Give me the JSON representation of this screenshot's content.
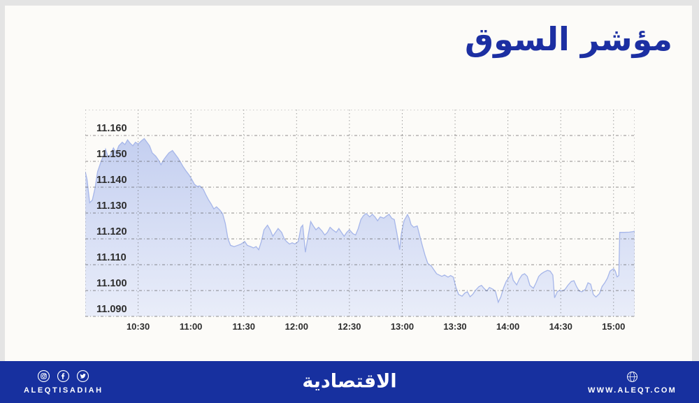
{
  "frame": {
    "color": "#e4e4e4"
  },
  "canvas": {
    "color": "#fcfbf8"
  },
  "title": {
    "text": "مؤشر السوق",
    "color": "#1c2fa2"
  },
  "chart_data": {
    "type": "area",
    "title": "مؤشر السوق",
    "xlabel": "",
    "ylabel": "",
    "x_axis": {
      "unit": "time-of-day",
      "visible_start": "10:00",
      "visible_end": "15:12"
    },
    "xlim_minutes_after_1000": [
      0,
      312
    ],
    "ylim": [
      11.09,
      11.17
    ],
    "grid": true,
    "legend": false,
    "xticks": [
      {
        "t": 30,
        "label": "10:30"
      },
      {
        "t": 60,
        "label": "11:00"
      },
      {
        "t": 90,
        "label": "11:30"
      },
      {
        "t": 120,
        "label": "12:00"
      },
      {
        "t": 150,
        "label": "12:30"
      },
      {
        "t": 180,
        "label": "13:00"
      },
      {
        "t": 210,
        "label": "13:30"
      },
      {
        "t": 240,
        "label": "14:00"
      },
      {
        "t": 270,
        "label": "14:30"
      },
      {
        "t": 300,
        "label": "15:00"
      }
    ],
    "yticks": [
      {
        "v": 11.09,
        "label": "11.090"
      },
      {
        "v": 11.1,
        "label": "11.100"
      },
      {
        "v": 11.11,
        "label": "11.110"
      },
      {
        "v": 11.12,
        "label": "11.120"
      },
      {
        "v": 11.13,
        "label": "11.130"
      },
      {
        "v": 11.14,
        "label": "11.140"
      },
      {
        "v": 11.15,
        "label": "11.150"
      },
      {
        "v": 11.16,
        "label": "11.160"
      }
    ],
    "series": [
      {
        "name": "market-index-intraday",
        "points": [
          [
            0,
            11.146
          ],
          [
            1,
            11.143
          ],
          [
            2.5,
            11.134
          ],
          [
            4,
            11.135
          ],
          [
            5.5,
            11.1395
          ],
          [
            7,
            11.146
          ],
          [
            9,
            11.15
          ],
          [
            10.5,
            11.1525
          ],
          [
            11.5,
            11.1547
          ],
          [
            13,
            11.1515
          ],
          [
            14.5,
            11.1528
          ],
          [
            16,
            11.1552
          ],
          [
            17.5,
            11.1533
          ],
          [
            19,
            11.156
          ],
          [
            21,
            11.1574
          ],
          [
            22.5,
            11.1565
          ],
          [
            24,
            11.1583
          ],
          [
            25.5,
            11.157
          ],
          [
            27,
            11.156
          ],
          [
            28.5,
            11.1574
          ],
          [
            30,
            11.1567
          ],
          [
            32,
            11.158
          ],
          [
            33.5,
            11.1588
          ],
          [
            35,
            11.1574
          ],
          [
            36.5,
            11.156
          ],
          [
            38,
            11.1533
          ],
          [
            40,
            11.152
          ],
          [
            41.5,
            11.1506
          ],
          [
            43,
            11.1487
          ],
          [
            44.5,
            11.1506
          ],
          [
            46,
            11.152
          ],
          [
            47.5,
            11.1533
          ],
          [
            49.5,
            11.1542
          ],
          [
            51,
            11.1528
          ],
          [
            52.5,
            11.1514
          ],
          [
            54,
            11.1498
          ],
          [
            55.5,
            11.148
          ],
          [
            57,
            11.1465
          ],
          [
            59,
            11.1447
          ],
          [
            60.5,
            11.143
          ],
          [
            62,
            11.1411
          ],
          [
            63.5,
            11.1403
          ],
          [
            65,
            11.1405
          ],
          [
            67,
            11.1392
          ],
          [
            68.5,
            11.137
          ],
          [
            70,
            11.1351
          ],
          [
            71.5,
            11.1335
          ],
          [
            73,
            11.1316
          ],
          [
            74.5,
            11.1324
          ],
          [
            76.5,
            11.1311
          ],
          [
            78,
            11.1297
          ],
          [
            79.5,
            11.126
          ],
          [
            81,
            11.12
          ],
          [
            82.5,
            11.1175
          ],
          [
            84.5,
            11.117
          ],
          [
            86.5,
            11.1175
          ],
          [
            88.5,
            11.118
          ],
          [
            90.5,
            11.119
          ],
          [
            92,
            11.1175
          ],
          [
            94,
            11.117
          ],
          [
            95.5,
            11.1165
          ],
          [
            97,
            11.117
          ],
          [
            98.5,
            11.1158
          ],
          [
            100,
            11.119
          ],
          [
            101.5,
            11.1235
          ],
          [
            103.5,
            11.1253
          ],
          [
            105,
            11.1235
          ],
          [
            106.5,
            11.121
          ],
          [
            108,
            11.1225
          ],
          [
            109.5,
            11.124
          ],
          [
            111.5,
            11.1225
          ],
          [
            113,
            11.12
          ],
          [
            114.5,
            11.1188
          ],
          [
            116,
            11.118
          ],
          [
            117.5,
            11.1185
          ],
          [
            119,
            11.118
          ],
          [
            121,
            11.119
          ],
          [
            122.5,
            11.1245
          ],
          [
            123.5,
            11.1253
          ],
          [
            125,
            11.1148
          ],
          [
            126.5,
            11.121
          ],
          [
            128,
            11.1267
          ],
          [
            129.5,
            11.125
          ],
          [
            131,
            11.1235
          ],
          [
            132.5,
            11.1245
          ],
          [
            134.5,
            11.123
          ],
          [
            136,
            11.1215
          ],
          [
            137.5,
            11.1225
          ],
          [
            139,
            11.1245
          ],
          [
            140.5,
            11.1235
          ],
          [
            142.5,
            11.1225
          ],
          [
            144,
            11.124
          ],
          [
            145.5,
            11.1225
          ],
          [
            147,
            11.121
          ],
          [
            148.5,
            11.1225
          ],
          [
            150,
            11.1235
          ],
          [
            152,
            11.122
          ],
          [
            153.5,
            11.1215
          ],
          [
            155,
            11.124
          ],
          [
            156.5,
            11.1275
          ],
          [
            158,
            11.129
          ],
          [
            159.5,
            11.1298
          ],
          [
            161.5,
            11.1285
          ],
          [
            163,
            11.1295
          ],
          [
            164.5,
            11.1285
          ],
          [
            166,
            11.127
          ],
          [
            167.5,
            11.1285
          ],
          [
            169.5,
            11.128
          ],
          [
            171,
            11.1288
          ],
          [
            172.5,
            11.1295
          ],
          [
            174,
            11.128
          ],
          [
            175.5,
            11.1275
          ],
          [
            177,
            11.122
          ],
          [
            178.5,
            11.1158
          ],
          [
            179.5,
            11.122
          ],
          [
            181,
            11.127
          ],
          [
            183,
            11.1294
          ],
          [
            184,
            11.128
          ],
          [
            185,
            11.1255
          ],
          [
            186.5,
            11.1245
          ],
          [
            188.5,
            11.125
          ],
          [
            190,
            11.121
          ],
          [
            191.5,
            11.1172
          ],
          [
            193,
            11.1135
          ],
          [
            194.5,
            11.1105
          ],
          [
            196.5,
            11.1095
          ],
          [
            198,
            11.108
          ],
          [
            199.5,
            11.1065
          ],
          [
            201,
            11.106
          ],
          [
            202.5,
            11.1055
          ],
          [
            204,
            11.106
          ],
          [
            206,
            11.1052
          ],
          [
            207.5,
            11.1058
          ],
          [
            209,
            11.1052
          ],
          [
            210.5,
            11.1012
          ],
          [
            212,
            11.0985
          ],
          [
            214,
            11.0978
          ],
          [
            215.5,
            11.099
          ],
          [
            217,
            11.0995
          ],
          [
            218.5,
            11.0976
          ],
          [
            220,
            11.0985
          ],
          [
            221.5,
            11.1
          ],
          [
            223.5,
            11.1015
          ],
          [
            225,
            11.102
          ],
          [
            226.5,
            11.1008
          ],
          [
            228,
            11.0998
          ],
          [
            229.5,
            11.1012
          ],
          [
            231.5,
            11.1005
          ],
          [
            233,
            11.0995
          ],
          [
            234.5,
            11.0955
          ],
          [
            236,
            11.0975
          ],
          [
            237.5,
            11.101
          ],
          [
            239,
            11.1035
          ],
          [
            241,
            11.1055
          ],
          [
            242,
            11.107
          ],
          [
            243,
            11.104
          ],
          [
            245,
            11.1022
          ],
          [
            246.5,
            11.1045
          ],
          [
            248,
            11.106
          ],
          [
            249.5,
            11.1065
          ],
          [
            251,
            11.1055
          ],
          [
            252.5,
            11.102
          ],
          [
            254.5,
            11.1009
          ],
          [
            256,
            11.103
          ],
          [
            257.5,
            11.1055
          ],
          [
            259,
            11.1065
          ],
          [
            260.5,
            11.1072
          ],
          [
            262.5,
            11.1078
          ],
          [
            264,
            11.1075
          ],
          [
            265.5,
            11.106
          ],
          [
            266.5,
            11.0972
          ],
          [
            268,
            11.0995
          ],
          [
            269.5,
            11.1002
          ],
          [
            271,
            11.0998
          ],
          [
            272.5,
            11.1005
          ],
          [
            274,
            11.102
          ],
          [
            276,
            11.1035
          ],
          [
            277.5,
            11.1038
          ],
          [
            279,
            11.1015
          ],
          [
            280.5,
            11.0998
          ],
          [
            282,
            11.0995
          ],
          [
            284,
            11.1005
          ],
          [
            285.5,
            11.103
          ],
          [
            287,
            11.1025
          ],
          [
            288.5,
            11.0985
          ],
          [
            290,
            11.0975
          ],
          [
            292,
            11.0988
          ],
          [
            293.5,
            11.1016
          ],
          [
            295,
            11.103
          ],
          [
            296.5,
            11.1048
          ],
          [
            298,
            11.1075
          ],
          [
            300,
            11.1085
          ],
          [
            301,
            11.1075
          ],
          [
            302,
            11.1053
          ],
          [
            303,
            11.1058
          ],
          [
            303.5,
            11.1225
          ],
          [
            306,
            11.1225
          ],
          [
            309,
            11.1226
          ],
          [
            311,
            11.1228
          ],
          [
            312,
            11.123
          ]
        ]
      }
    ],
    "style": {
      "fill_top": "#c4cff0",
      "fill_bottom": "#e9edf9",
      "line_color": "#a6b6e9",
      "grid_color": "#555555",
      "border_color": "#7a7a7a",
      "tick_label_color": "#2d2d2d"
    }
  },
  "footer": {
    "bg": "#17309f",
    "brand": "الاقتصادية",
    "handle": "ALEQTISADIAH",
    "website": "WWW.ALEQT.COM",
    "icons": [
      "instagram-icon",
      "facebook-icon",
      "twitter-icon",
      "globe-icon"
    ]
  }
}
